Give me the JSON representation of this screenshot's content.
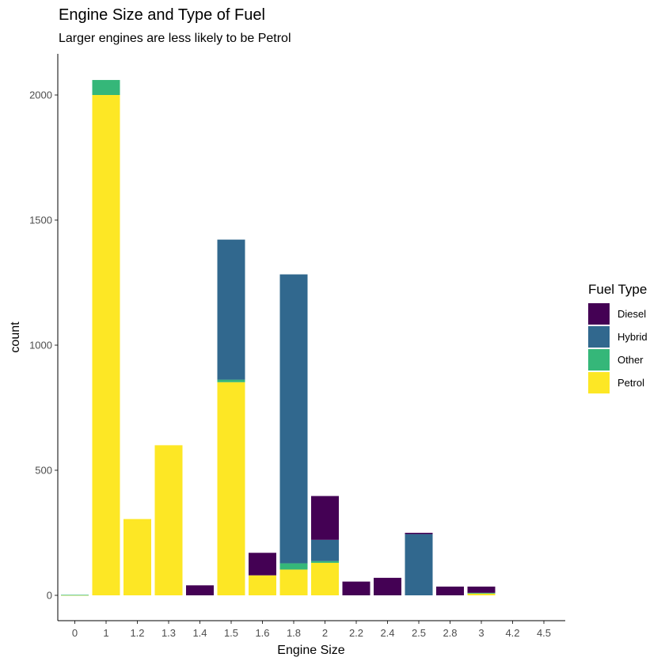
{
  "chart_data": {
    "type": "bar",
    "stacked": true,
    "title": "Engine Size and Type of Fuel",
    "subtitle": "Larger engines are less likely to be Petrol",
    "xlabel": "Engine Size",
    "ylabel": "count",
    "categories": [
      "0",
      "1",
      "1.2",
      "1.3",
      "1.4",
      "1.5",
      "1.6",
      "1.8",
      "2",
      "2.2",
      "2.4",
      "2.5",
      "2.8",
      "3",
      "4.2",
      "4.5"
    ],
    "yticks": [
      0,
      500,
      1000,
      1500,
      2000
    ],
    "ylim": [
      -100,
      2160
    ],
    "legend": {
      "title": "Fuel Type",
      "position": "right"
    },
    "stack_order_top_to_bottom": [
      "Diesel",
      "Hybrid",
      "Other",
      "Petrol"
    ],
    "series": [
      {
        "name": "Diesel",
        "color": "#440154",
        "values": [
          0,
          0,
          0,
          0,
          40,
          0,
          90,
          0,
          175,
          55,
          70,
          5,
          35,
          25,
          0,
          0
        ]
      },
      {
        "name": "Hybrid",
        "color": "#31688E",
        "values": [
          0,
          0,
          0,
          0,
          0,
          560,
          0,
          1155,
          85,
          0,
          0,
          245,
          0,
          0,
          0,
          0
        ]
      },
      {
        "name": "Other",
        "color": "#35B779",
        "values": [
          1,
          60,
          0,
          0,
          0,
          10,
          0,
          25,
          7,
          0,
          0,
          0,
          0,
          3,
          0,
          0
        ]
      },
      {
        "name": "Petrol",
        "color": "#FDE725",
        "values": [
          1,
          2000,
          305,
          600,
          0,
          852,
          80,
          103,
          130,
          0,
          0,
          0,
          0,
          7,
          0,
          0
        ]
      }
    ]
  }
}
